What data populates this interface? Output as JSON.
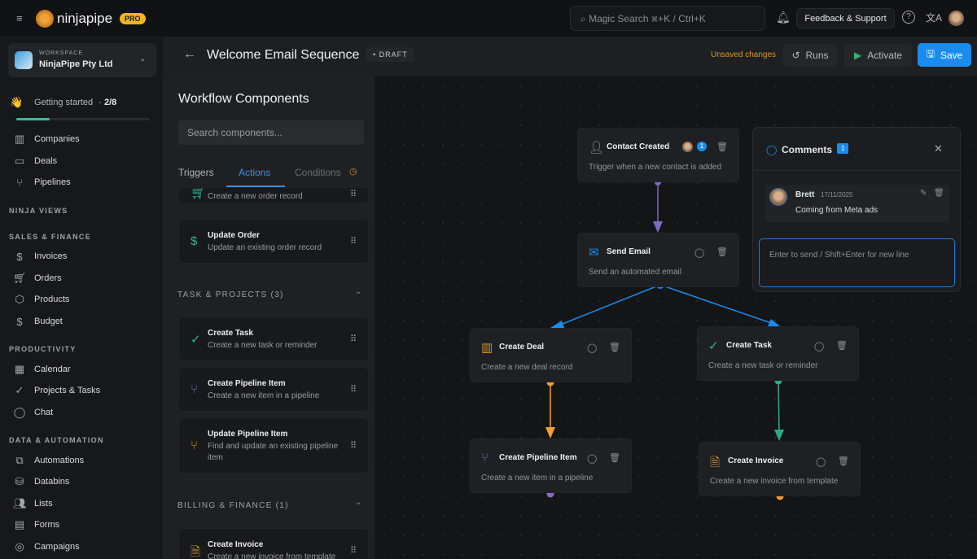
{
  "topbar": {
    "brand": "ninjapipe",
    "badge": "PRO",
    "search_placeholder": "Magic Search ⌘+K / Ctrl+K",
    "feedback": "Feedback & Support"
  },
  "sidebar": {
    "workspace_label": "WORKSPACE",
    "workspace_name": "NinjaPipe Pty Ltd",
    "getting_started": "Getting started",
    "progress_text": "2/8",
    "progress": 0.25,
    "top_items": [
      {
        "label": "Companies",
        "icon": "building-icon"
      },
      {
        "label": "Deals",
        "icon": "briefcase-icon"
      },
      {
        "label": "Pipelines",
        "icon": "branch-icon"
      }
    ],
    "sections": [
      {
        "title": "NINJA VIEWS",
        "items": []
      },
      {
        "title": "SALES & FINANCE",
        "items": [
          {
            "label": "Invoices"
          },
          {
            "label": "Orders"
          },
          {
            "label": "Products"
          },
          {
            "label": "Budget"
          }
        ]
      },
      {
        "title": "PRODUCTIVITY",
        "items": [
          {
            "label": "Calendar"
          },
          {
            "label": "Projects & Tasks"
          },
          {
            "label": "Chat"
          }
        ]
      },
      {
        "title": "DATA & AUTOMATION",
        "items": [
          {
            "label": "Automations"
          },
          {
            "label": "Databins"
          },
          {
            "label": "Lists"
          },
          {
            "label": "Forms"
          },
          {
            "label": "Campaigns"
          }
        ]
      }
    ]
  },
  "header": {
    "title": "Welcome Email Sequence",
    "status": "DRAFT",
    "unsaved": "Unsaved changes",
    "runs": "Runs",
    "activate": "Activate",
    "save": "Save"
  },
  "panel": {
    "title": "Workflow Components",
    "search_placeholder": "Search components...",
    "tabs": [
      {
        "label": "Triggers"
      },
      {
        "label": "Actions",
        "active": true
      },
      {
        "label": "Conditions"
      }
    ],
    "partial_item": {
      "desc": "Create a new order record"
    },
    "items_top": [
      {
        "title": "Update Order",
        "desc": "Update an existing order record"
      }
    ],
    "section_tasks": "TASK & PROJECTS (3)",
    "tasks": [
      {
        "title": "Create Task",
        "desc": "Create a new task or reminder"
      },
      {
        "title": "Create Pipeline Item",
        "desc": "Create a new item in a pipeline"
      },
      {
        "title": "Update Pipeline Item",
        "desc": "Find and update an existing pipeline item"
      }
    ],
    "section_billing": "BILLING & FINANCE (1)",
    "billing": [
      {
        "title": "Create Invoice",
        "desc": "Create a new invoice from template"
      }
    ]
  },
  "canvas": {
    "nodes": [
      {
        "title": "Contact Created",
        "desc": "Trigger when a new contact is added",
        "comment_count": "1"
      },
      {
        "title": "Send Email",
        "desc": "Send an automated email"
      },
      {
        "title": "Create Deal",
        "desc": "Create a new deal record"
      },
      {
        "title": "Create Task",
        "desc": "Create a new task or reminder"
      },
      {
        "title": "Create Pipeline Item",
        "desc": "Create a new item in a pipeline"
      },
      {
        "title": "Create Invoice",
        "desc": "Create a new invoice from template"
      }
    ],
    "edge_colors": {
      "trigger": "#7b6bc4",
      "email": "#1a8cf0",
      "deal": "#f0a030",
      "task": "#2fa88a"
    }
  },
  "comments": {
    "title": "Comments",
    "count": "1",
    "author": "Brett",
    "date": "17/11/2025",
    "text": "Coming from Meta ads",
    "input_placeholder": "Enter to send / Shift+Enter for new line"
  },
  "colors": {
    "accent": "#1a8cf0",
    "brand": "#f0a33a",
    "warning": "#e0a030"
  }
}
